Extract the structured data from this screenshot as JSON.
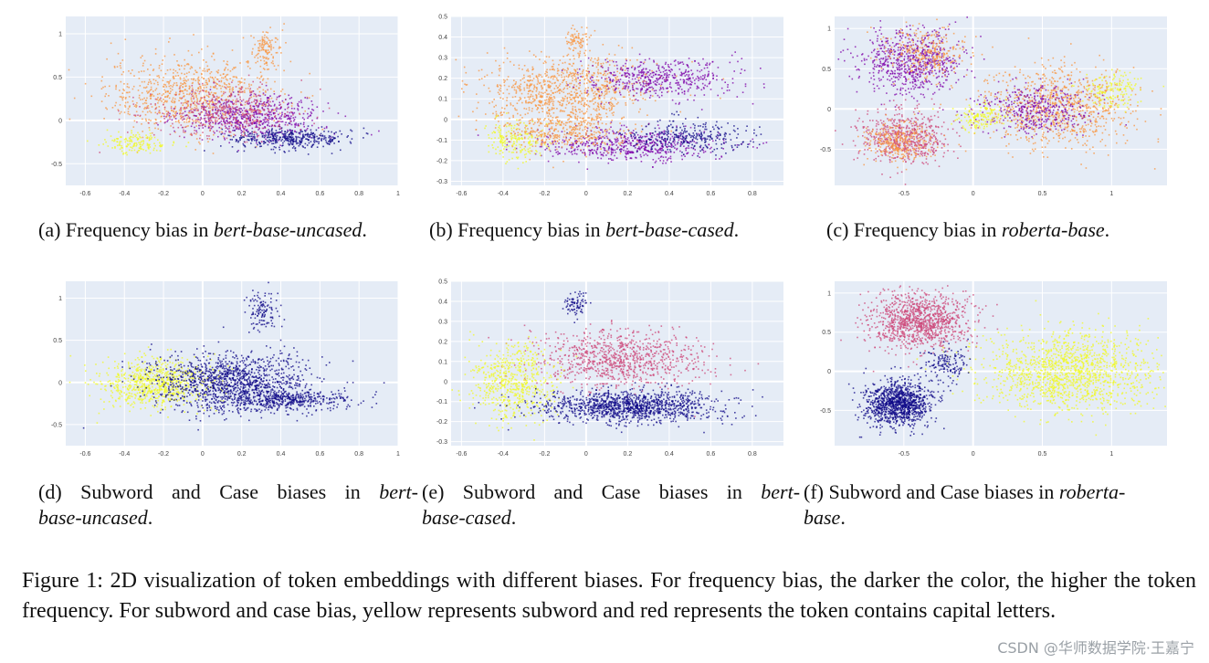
{
  "chart_data": [
    {
      "id": "a",
      "type": "scatter",
      "colors": [
        "#0d0887",
        "#7e03a8",
        "#cc4778",
        "#f89540",
        "#f0f921"
      ],
      "xlim": [
        -0.7,
        1.0
      ],
      "ylim": [
        -0.75,
        1.2
      ],
      "x_ticks": [
        -0.6,
        -0.4,
        -0.2,
        0,
        0.2,
        0.4,
        0.6,
        0.8,
        1
      ],
      "x_tick_labels": [
        "-0.6",
        "-0.4",
        "-0.2",
        "0",
        "0.2",
        "0.4",
        "0.6",
        "0.8",
        "1"
      ],
      "y_ticks": [
        -0.5,
        0,
        0.5,
        1
      ],
      "y_tick_labels": [
        "-0.5",
        "0",
        "0.5",
        "1"
      ],
      "clusters": [
        {
          "cx": -0.05,
          "cy": 0.3,
          "sx": 0.22,
          "sy": 0.22,
          "n": 900,
          "color": 3
        },
        {
          "cx": 0.25,
          "cy": 0.05,
          "sx": 0.18,
          "sy": 0.12,
          "n": 600,
          "color": 1
        },
        {
          "cx": 0.45,
          "cy": -0.2,
          "sx": 0.15,
          "sy": 0.06,
          "n": 400,
          "color": 0
        },
        {
          "cx": -0.35,
          "cy": -0.25,
          "sx": 0.08,
          "sy": 0.06,
          "n": 150,
          "color": 4
        },
        {
          "cx": 0.32,
          "cy": 0.85,
          "sx": 0.04,
          "sy": 0.12,
          "n": 120,
          "color": 3
        },
        {
          "cx": 0.1,
          "cy": 0.1,
          "sx": 0.2,
          "sy": 0.15,
          "n": 400,
          "color": 2
        }
      ],
      "caption": {
        "label": "(a)",
        "text": "Frequency bias in",
        "model": "bert-base-uncased",
        "end": "."
      }
    },
    {
      "id": "b",
      "type": "scatter",
      "colors": [
        "#0d0887",
        "#7e03a8",
        "#cc4778",
        "#f89540",
        "#f0f921"
      ],
      "xlim": [
        -0.65,
        0.95
      ],
      "ylim": [
        -0.32,
        0.5
      ],
      "x_ticks": [
        -0.6,
        -0.4,
        -0.2,
        0,
        0.2,
        0.4,
        0.6,
        0.8
      ],
      "x_tick_labels": [
        "-0.6",
        "-0.4",
        "-0.2",
        "0",
        "0.2",
        "0.4",
        "0.6",
        "0.8"
      ],
      "y_ticks": [
        -0.3,
        -0.2,
        -0.1,
        0,
        0.1,
        0.2,
        0.3,
        0.4,
        0.5
      ],
      "y_tick_labels": [
        "-0.3",
        "-0.2",
        "-0.1",
        "0",
        "0.1",
        "0.2",
        "0.3",
        "0.4",
        "0.5"
      ],
      "clusters": [
        {
          "cx": -0.1,
          "cy": 0.15,
          "sx": 0.2,
          "sy": 0.08,
          "n": 900,
          "color": 3
        },
        {
          "cx": 0.35,
          "cy": 0.2,
          "sx": 0.18,
          "sy": 0.05,
          "n": 500,
          "color": 1
        },
        {
          "cx": 0.2,
          "cy": -0.12,
          "sx": 0.22,
          "sy": 0.04,
          "n": 600,
          "color": 1
        },
        {
          "cx": 0.5,
          "cy": -0.08,
          "sx": 0.15,
          "sy": 0.04,
          "n": 300,
          "color": 0
        },
        {
          "cx": -0.35,
          "cy": -0.1,
          "sx": 0.07,
          "sy": 0.05,
          "n": 200,
          "color": 4
        },
        {
          "cx": -0.05,
          "cy": 0.38,
          "sx": 0.03,
          "sy": 0.03,
          "n": 80,
          "color": 3
        },
        {
          "cx": -0.1,
          "cy": -0.05,
          "sx": 0.15,
          "sy": 0.05,
          "n": 400,
          "color": 3
        }
      ],
      "caption": {
        "label": "(b)",
        "text": "Frequency bias in",
        "model": "bert-base-cased",
        "end": "."
      }
    },
    {
      "id": "c",
      "type": "scatter",
      "colors": [
        "#0d0887",
        "#7e03a8",
        "#cc4778",
        "#f89540",
        "#f0f921"
      ],
      "xlim": [
        -1.0,
        1.4
      ],
      "ylim": [
        -0.95,
        1.15
      ],
      "x_ticks": [
        -0.5,
        0,
        0.5,
        1
      ],
      "x_tick_labels": [
        "-0.5",
        "0",
        "0.5",
        "1"
      ],
      "y_ticks": [
        -0.5,
        0,
        0.5,
        1
      ],
      "y_tick_labels": [
        "-0.5",
        "0",
        "0.5",
        "1"
      ],
      "clusters": [
        {
          "cx": -0.45,
          "cy": 0.6,
          "sx": 0.18,
          "sy": 0.2,
          "n": 700,
          "color": 1
        },
        {
          "cx": -0.35,
          "cy": 0.7,
          "sx": 0.15,
          "sy": 0.15,
          "n": 300,
          "color": 3
        },
        {
          "cx": -0.5,
          "cy": -0.35,
          "sx": 0.16,
          "sy": 0.17,
          "n": 600,
          "color": 2
        },
        {
          "cx": -0.55,
          "cy": -0.4,
          "sx": 0.12,
          "sy": 0.12,
          "n": 300,
          "color": 3
        },
        {
          "cx": 0.6,
          "cy": 0.05,
          "sx": 0.28,
          "sy": 0.25,
          "n": 900,
          "color": 3
        },
        {
          "cx": 0.45,
          "cy": 0.0,
          "sx": 0.2,
          "sy": 0.15,
          "n": 400,
          "color": 1
        },
        {
          "cx": 0.05,
          "cy": -0.1,
          "sx": 0.1,
          "sy": 0.08,
          "n": 150,
          "color": 4
        },
        {
          "cx": 1.0,
          "cy": 0.25,
          "sx": 0.1,
          "sy": 0.12,
          "n": 150,
          "color": 4
        }
      ],
      "caption": {
        "label": "(c)",
        "text": "Frequency bias in",
        "model": "roberta-base",
        "end": "."
      }
    },
    {
      "id": "d",
      "type": "scatter",
      "colors": [
        "#0d0887",
        "#cc4778",
        "#f0f921"
      ],
      "xlim": [
        -0.7,
        1.0
      ],
      "ylim": [
        -0.75,
        1.2
      ],
      "x_ticks": [
        -0.6,
        -0.4,
        -0.2,
        0,
        0.2,
        0.4,
        0.6,
        0.8,
        1
      ],
      "x_tick_labels": [
        "-0.6",
        "-0.4",
        "-0.2",
        "0",
        "0.2",
        "0.4",
        "0.6",
        "0.8",
        "1"
      ],
      "y_ticks": [
        -0.5,
        0,
        0.5,
        1
      ],
      "y_tick_labels": [
        "-0.5",
        "0",
        "0.5",
        "1"
      ],
      "clusters": [
        {
          "cx": -0.25,
          "cy": 0.0,
          "sx": 0.15,
          "sy": 0.15,
          "n": 800,
          "color": 2
        },
        {
          "cx": 0.15,
          "cy": 0.0,
          "sx": 0.2,
          "sy": 0.18,
          "n": 1300,
          "color": 0
        },
        {
          "cx": 0.45,
          "cy": -0.2,
          "sx": 0.15,
          "sy": 0.06,
          "n": 400,
          "color": 0
        },
        {
          "cx": 0.3,
          "cy": 0.85,
          "sx": 0.04,
          "sy": 0.12,
          "n": 120,
          "color": 0
        }
      ],
      "caption": {
        "label": "(d)",
        "text": "Subword and Case biases in",
        "model_a": "bert-",
        "model_b": "base-uncased",
        "end": "."
      }
    },
    {
      "id": "e",
      "type": "scatter",
      "colors": [
        "#0d0887",
        "#cc4778",
        "#f0f921"
      ],
      "xlim": [
        -0.65,
        0.95
      ],
      "ylim": [
        -0.32,
        0.5
      ],
      "x_ticks": [
        -0.6,
        -0.4,
        -0.2,
        0,
        0.2,
        0.4,
        0.6,
        0.8
      ],
      "x_tick_labels": [
        "-0.6",
        "-0.4",
        "-0.2",
        "0",
        "0.2",
        "0.4",
        "0.6",
        "0.8"
      ],
      "y_ticks": [
        -0.3,
        -0.2,
        -0.1,
        0,
        0.1,
        0.2,
        0.3,
        0.4,
        0.5
      ],
      "y_tick_labels": [
        "-0.3",
        "-0.2",
        "-0.1",
        "0",
        "0.1",
        "0.2",
        "0.3",
        "0.4",
        "0.5"
      ],
      "clusters": [
        {
          "cx": 0.15,
          "cy": 0.12,
          "sx": 0.2,
          "sy": 0.07,
          "n": 900,
          "color": 1
        },
        {
          "cx": -0.35,
          "cy": 0.0,
          "sx": 0.1,
          "sy": 0.1,
          "n": 600,
          "color": 2
        },
        {
          "cx": 0.2,
          "cy": -0.12,
          "sx": 0.22,
          "sy": 0.04,
          "n": 1200,
          "color": 0
        },
        {
          "cx": -0.05,
          "cy": 0.38,
          "sx": 0.03,
          "sy": 0.03,
          "n": 80,
          "color": 0
        }
      ],
      "caption": {
        "label": "(e)",
        "text": "Subword and Case biases in",
        "model_a": "bert-",
        "model_b": "base-cased",
        "end": "."
      }
    },
    {
      "id": "f",
      "type": "scatter",
      "colors": [
        "#0d0887",
        "#cc4778",
        "#f0f921"
      ],
      "xlim": [
        -1.0,
        1.4
      ],
      "ylim": [
        -0.95,
        1.15
      ],
      "x_ticks": [
        -0.5,
        0,
        0.5,
        1
      ],
      "x_tick_labels": [
        "-0.5",
        "0",
        "0.5",
        "1"
      ],
      "y_ticks": [
        -0.5,
        0,
        0.5,
        1
      ],
      "y_tick_labels": [
        "-0.5",
        "0",
        "0.5",
        "1"
      ],
      "clusters": [
        {
          "cx": -0.4,
          "cy": 0.65,
          "sx": 0.18,
          "sy": 0.18,
          "n": 1100,
          "color": 1
        },
        {
          "cx": -0.55,
          "cy": -0.4,
          "sx": 0.12,
          "sy": 0.14,
          "n": 1100,
          "color": 0
        },
        {
          "cx": 0.7,
          "cy": 0.0,
          "sx": 0.3,
          "sy": 0.25,
          "n": 1400,
          "color": 2
        },
        {
          "cx": -0.2,
          "cy": 0.1,
          "sx": 0.08,
          "sy": 0.12,
          "n": 150,
          "color": 0
        }
      ],
      "caption": {
        "label": "(f)",
        "text": "Subword and Case biases in",
        "model_a": "roberta-",
        "model_b": "base",
        "end": "."
      }
    }
  ],
  "figure_caption": "Figure 1: 2D visualization of token embeddings with different biases. For frequency bias, the darker the color, the higher the token frequency. For subword and case bias, yellow represents subword and red represents the token contains capital letters.",
  "watermark": "CSDN @华师数据学院·王嘉宁"
}
